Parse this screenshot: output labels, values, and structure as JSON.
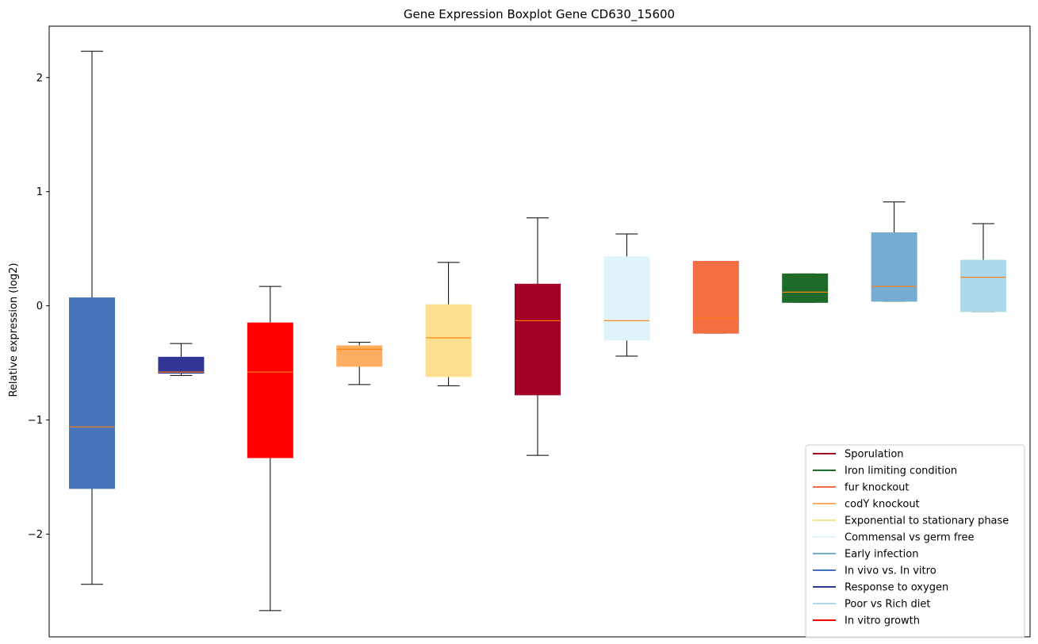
{
  "chart_data": {
    "type": "boxplot",
    "title": "Gene Expression Boxplot Gene CD630_15600",
    "xlabel": "",
    "ylabel": "Relative expression (log2)",
    "ylim": [
      -2.9,
      2.45
    ],
    "yticks": [
      {
        "value": 2,
        "label": "2"
      },
      {
        "value": 1,
        "label": "1"
      },
      {
        "value": 0,
        "label": "0"
      },
      {
        "value": -1,
        "label": "−1"
      },
      {
        "value": -2,
        "label": "−2"
      }
    ],
    "median_color": "#ff7f0e",
    "grid": false,
    "legend_position": "lower-right",
    "boxes": [
      {
        "color": "#4575b8",
        "whisker_low": -2.44,
        "q1": -1.6,
        "median": -1.06,
        "q3": 0.07,
        "whisker_high": 2.23
      },
      {
        "color": "#313695",
        "whisker_low": -0.61,
        "q1": -0.59,
        "median": -0.58,
        "q3": -0.45,
        "whisker_high": -0.33
      },
      {
        "color": "#ff0000",
        "whisker_low": -2.67,
        "q1": -1.33,
        "median": -0.58,
        "q3": -0.15,
        "whisker_high": 0.17
      },
      {
        "color": "#fdae61",
        "whisker_low": -0.69,
        "q1": -0.53,
        "median": -0.38,
        "q3": -0.35,
        "whisker_high": -0.32
      },
      {
        "color": "#fee090",
        "whisker_low": -0.7,
        "q1": -0.62,
        "median": -0.28,
        "q3": 0.01,
        "whisker_high": 0.38
      },
      {
        "color": "#a50026",
        "whisker_low": -1.31,
        "q1": -0.78,
        "median": -0.13,
        "q3": 0.19,
        "whisker_high": 0.77
      },
      {
        "color": "#e0f3f8",
        "whisker_low": -0.44,
        "q1": -0.3,
        "median": -0.13,
        "q3": 0.43,
        "whisker_high": 0.63
      },
      {
        "color": "#f46d43",
        "whisker_low": -0.24,
        "q1": -0.24,
        "median": -0.11,
        "q3": 0.39,
        "whisker_high": 0.39
      },
      {
        "color": "#1e6b29",
        "whisker_low": 0.03,
        "q1": 0.03,
        "median": 0.12,
        "q3": 0.28,
        "whisker_high": 0.28
      },
      {
        "color": "#74add1",
        "whisker_low": 0.04,
        "q1": 0.04,
        "median": 0.17,
        "q3": 0.64,
        "whisker_high": 0.91
      },
      {
        "color": "#abd9e9",
        "whisker_low": -0.05,
        "q1": -0.05,
        "median": 0.25,
        "q3": 0.4,
        "whisker_high": 0.72
      }
    ],
    "legend": [
      {
        "label": "Sporulation",
        "color": "#a50026"
      },
      {
        "label": "Iron limiting condition",
        "color": "#1e6b29"
      },
      {
        "label": "fur knockout",
        "color": "#f46d43"
      },
      {
        "label": "codY knockout",
        "color": "#fdae61"
      },
      {
        "label": "Exponential to stationary phase",
        "color": "#fee090"
      },
      {
        "label": "Commensal vs germ free",
        "color": "#e0f3f8"
      },
      {
        "label": "Early infection",
        "color": "#74add1"
      },
      {
        "label": "In vivo vs. In vitro",
        "color": "#4575b8"
      },
      {
        "label": "Response to oxygen",
        "color": "#313695"
      },
      {
        "label": "Poor vs Rich diet",
        "color": "#abd9e9"
      },
      {
        "label": "In vitro growth",
        "color": "#ff0000"
      }
    ]
  }
}
